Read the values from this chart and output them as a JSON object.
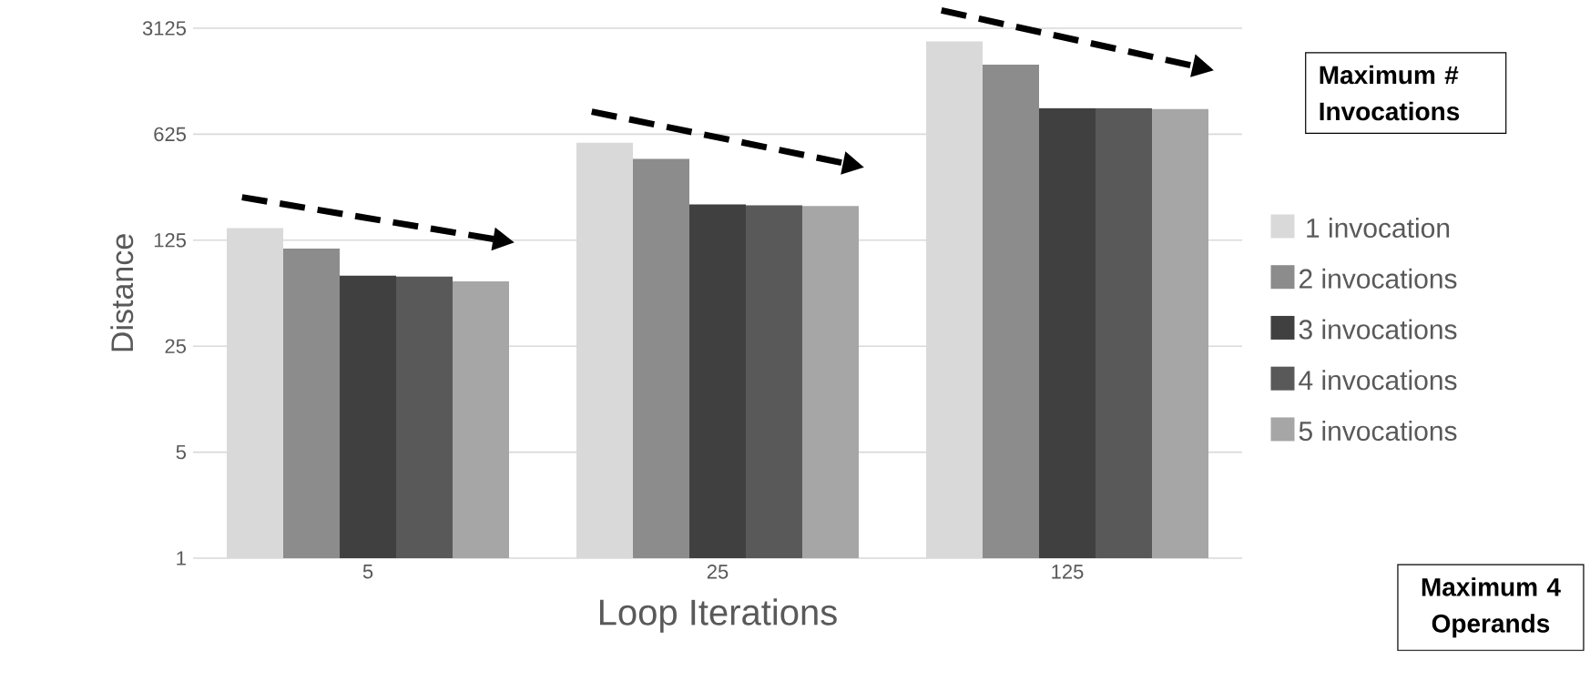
{
  "chart_data": {
    "type": "bar",
    "xlabel": "Loop Iterations",
    "ylabel": "Distance",
    "legend_title": "Maximum # Invocations",
    "categories": [
      "5",
      "25",
      "125"
    ],
    "series": [
      {
        "name": "1 invocation",
        "color": "#d9d9d9",
        "values": [
          150,
          550,
          2560
        ]
      },
      {
        "name": "2 invocations",
        "color": "#8c8c8c",
        "values": [
          110,
          430,
          1800
        ]
      },
      {
        "name": "3 invocations",
        "color": "#404040",
        "values": [
          73,
          215,
          930
        ]
      },
      {
        "name": "4 invocations",
        "color": "#595959",
        "values": [
          72,
          212,
          930
        ]
      },
      {
        "name": "5 invocations",
        "color": "#a6a6a6",
        "values": [
          67,
          210,
          915
        ]
      }
    ],
    "log": "y",
    "ylim": [
      1,
      3125
    ],
    "yticks": [
      1,
      5,
      25,
      125,
      625,
      3125
    ],
    "grid": "y",
    "legend": "right",
    "annotations": [
      "Maximum 4 Operands"
    ]
  }
}
